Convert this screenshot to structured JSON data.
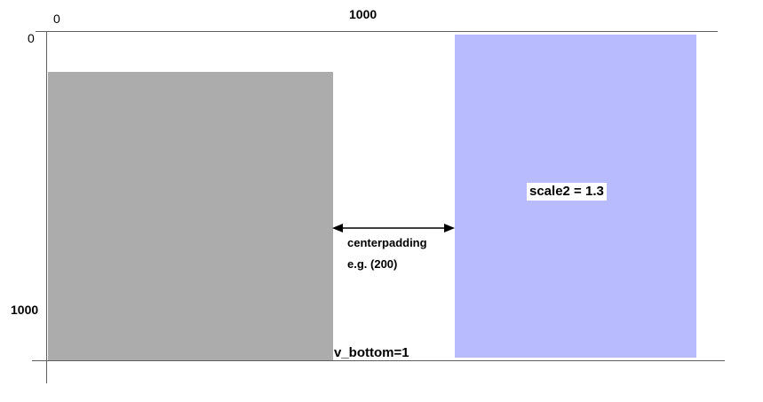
{
  "axes": {
    "x_start": "0",
    "x_end": "1000",
    "y_start": "0",
    "y_end": "1000"
  },
  "colors": {
    "gray_rect": "#acacac",
    "blue_rect": "#b9bbff",
    "axis": "#5f5f5f"
  },
  "blue_box": {
    "label": "scale2 = 1.3"
  },
  "padding": {
    "label": "centerpadding",
    "example": "e.g. (200)"
  },
  "bottom": {
    "label": "v_bottom=1"
  }
}
